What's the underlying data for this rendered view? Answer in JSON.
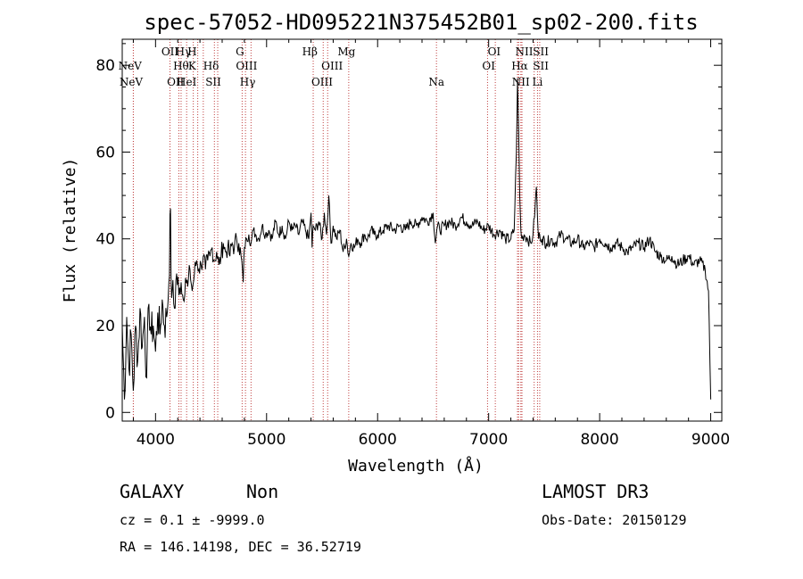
{
  "chart_data": {
    "type": "line",
    "title": "spec-57052-HD095221N375452B01_sp02-200.fits",
    "xlabel": "Wavelength (Å)",
    "ylabel": "Flux (relative)",
    "xlim": [
      3700,
      9100
    ],
    "ylim": [
      -2,
      86
    ],
    "xticks": [
      4000,
      5000,
      6000,
      7000,
      8000,
      9000
    ],
    "yticks": [
      0,
      20,
      40,
      60,
      80
    ],
    "grid": false,
    "series": [
      {
        "name": "flux",
        "color": "#000000",
        "x": [
          3700,
          3720,
          3740,
          3760,
          3780,
          3800,
          3820,
          3840,
          3860,
          3880,
          3900,
          3920,
          3940,
          3960,
          3980,
          4000,
          4020,
          4040,
          4060,
          4080,
          4100,
          4120,
          4135,
          4140,
          4150,
          4170,
          4190,
          4210,
          4230,
          4250,
          4270,
          4290,
          4310,
          4330,
          4350,
          4370,
          4390,
          4410,
          4430,
          4450,
          4470,
          4490,
          4510,
          4530,
          4550,
          4570,
          4590,
          4610,
          4630,
          4650,
          4670,
          4690,
          4710,
          4730,
          4750,
          4770,
          4790,
          4800,
          4820,
          4840,
          4860,
          4880,
          4900,
          4930,
          4960,
          4990,
          5020,
          5050,
          5080,
          5110,
          5140,
          5170,
          5200,
          5230,
          5260,
          5290,
          5320,
          5350,
          5380,
          5400,
          5410,
          5420,
          5440,
          5470,
          5500,
          5520,
          5540,
          5560,
          5580,
          5600,
          5630,
          5660,
          5690,
          5720,
          5740,
          5760,
          5790,
          5820,
          5850,
          5880,
          5910,
          5940,
          5970,
          6000,
          6050,
          6100,
          6150,
          6200,
          6250,
          6300,
          6350,
          6400,
          6450,
          6500,
          6520,
          6540,
          6560,
          6600,
          6650,
          6700,
          6750,
          6800,
          6850,
          6900,
          6950,
          7000,
          7050,
          7100,
          7150,
          7200,
          7230,
          7250,
          7260,
          7270,
          7280,
          7290,
          7300,
          7320,
          7350,
          7380,
          7400,
          7420,
          7430,
          7440,
          7450,
          7460,
          7480,
          7520,
          7560,
          7600,
          7650,
          7700,
          7750,
          7800,
          7850,
          7900,
          7950,
          8000,
          8050,
          8100,
          8150,
          8200,
          8250,
          8300,
          8350,
          8400,
          8450,
          8500,
          8550,
          8600,
          8650,
          8700,
          8750,
          8800,
          8850,
          8900,
          8950,
          8980,
          9000
        ],
        "y": [
          20,
          3,
          22,
          10,
          18,
          5,
          20,
          12,
          24,
          15,
          22,
          8,
          25,
          18,
          20,
          14,
          23,
          18,
          26,
          20,
          22,
          30,
          47,
          30,
          28,
          24,
          32,
          27,
          30,
          26,
          31,
          29,
          33,
          28,
          32,
          35,
          33,
          34,
          36,
          33,
          35,
          36,
          38,
          35,
          37,
          34,
          36,
          39,
          37,
          38,
          36,
          39,
          38,
          40,
          39,
          36,
          30,
          38,
          40,
          41,
          39,
          42,
          41,
          40,
          43,
          41,
          42,
          40,
          44,
          41,
          43,
          40,
          44,
          42,
          43,
          41,
          44,
          42,
          40,
          46,
          38,
          43,
          42,
          44,
          40,
          46,
          41,
          50,
          39,
          43,
          40,
          42,
          37,
          40,
          36,
          39,
          38,
          40,
          39,
          41,
          40,
          42,
          41,
          41,
          42,
          43,
          42,
          43,
          42,
          44,
          43,
          45,
          44,
          46,
          39,
          43,
          42,
          43,
          44,
          43,
          45,
          44,
          43,
          44,
          42,
          43,
          41,
          42,
          40,
          40,
          42,
          60,
          77,
          65,
          50,
          42,
          40,
          41,
          40,
          39,
          41,
          48,
          52,
          45,
          40,
          41,
          40,
          39,
          40,
          39,
          41,
          40,
          39,
          40,
          38,
          39,
          38,
          40,
          39,
          38,
          39,
          38,
          37,
          38,
          39,
          38,
          40,
          37,
          36,
          35,
          36,
          34,
          35,
          36,
          34,
          35,
          33,
          28,
          3
        ]
      }
    ],
    "lines": {
      "positions": [
        3800,
        3800,
        4130,
        4130,
        4210,
        4230,
        4280,
        4340,
        4380,
        4430,
        4530,
        4560,
        4780,
        4810,
        4860,
        5420,
        5510,
        5550,
        5740,
        6530,
        6990,
        7060,
        7260,
        7270,
        7290,
        7300,
        7410,
        7440,
        7460
      ],
      "labels": [
        {
          "text": "NeV",
          "at": 3770,
          "row": 2
        },
        {
          "text": "NeV",
          "at": 3780,
          "row": 3
        },
        {
          "text": "OII",
          "at": 4130,
          "row": 1
        },
        {
          "text": "Hγ",
          "at": 4250,
          "row": 1
        },
        {
          "text": "H",
          "at": 4330,
          "row": 1
        },
        {
          "text": "Hθ",
          "at": 4230,
          "row": 2
        },
        {
          "text": "K",
          "at": 4330,
          "row": 2
        },
        {
          "text": "Hδ",
          "at": 4500,
          "row": 2
        },
        {
          "text": "OII",
          "at": 4180,
          "row": 3
        },
        {
          "text": "HeI",
          "at": 4280,
          "row": 3
        },
        {
          "text": "SII",
          "at": 4520,
          "row": 3
        },
        {
          "text": "G",
          "at": 4760,
          "row": 1
        },
        {
          "text": "OIII",
          "at": 4820,
          "row": 2
        },
        {
          "text": "Hγ",
          "at": 4830,
          "row": 3
        },
        {
          "text": "Hβ",
          "at": 5390,
          "row": 1
        },
        {
          "text": "Mg",
          "at": 5720,
          "row": 1
        },
        {
          "text": "OIII",
          "at": 5590,
          "row": 2
        },
        {
          "text": "OIII",
          "at": 5500,
          "row": 3
        },
        {
          "text": "Na",
          "at": 6530,
          "row": 3
        },
        {
          "text": "OI",
          "at": 7050,
          "row": 1
        },
        {
          "text": "OI",
          "at": 7000,
          "row": 2
        },
        {
          "text": "NII",
          "at": 7320,
          "row": 1
        },
        {
          "text": "SII",
          "at": 7470,
          "row": 1
        },
        {
          "text": "Hα",
          "at": 7280,
          "row": 2
        },
        {
          "text": "SII",
          "at": 7470,
          "row": 2
        },
        {
          "text": "NII",
          "at": 7290,
          "row": 3
        },
        {
          "text": "Li",
          "at": 7440,
          "row": 3
        }
      ]
    }
  },
  "info": {
    "object_class": "GALAXY",
    "subclass": "Non",
    "cz": "cz = 0.1 ± -9999.0",
    "radec": "RA = 146.14198, DEC =  36.52719",
    "survey": "LAMOST DR3",
    "obs_date": "Obs-Date: 20150129"
  },
  "colors": {
    "axis": "#000000",
    "line": "#000000",
    "marker": "#c04040"
  }
}
